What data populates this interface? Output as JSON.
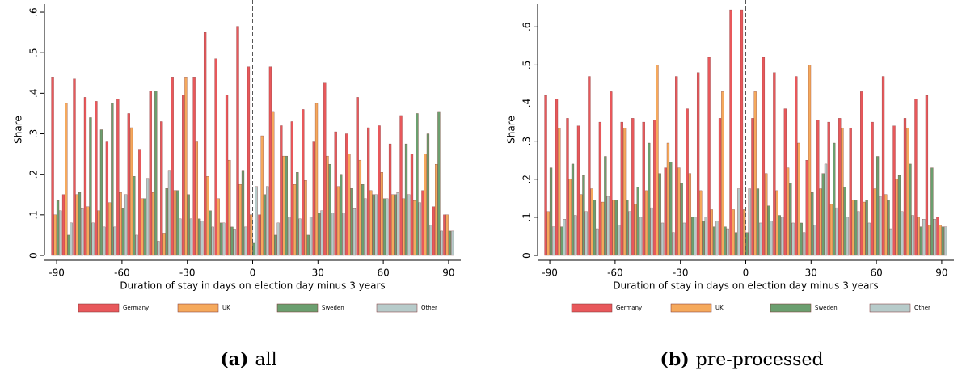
{
  "chart_data": [
    {
      "type": "bar",
      "caption_label": "(a)",
      "caption": "all",
      "xlabel": "Duration of stay in days on election day minus 3 years",
      "ylabel": "Share",
      "x": [
        -90,
        -85,
        -80,
        -75,
        -70,
        -65,
        -60,
        -55,
        -50,
        -45,
        -40,
        -35,
        -30,
        -25,
        -20,
        -15,
        -10,
        -5,
        0,
        5,
        10,
        15,
        20,
        25,
        30,
        35,
        40,
        45,
        50,
        55,
        60,
        65,
        70,
        75,
        80,
        85,
        90
      ],
      "series": [
        {
          "name": "Germany",
          "color": "#e8585b",
          "values": [
            0.44,
            0.15,
            0.435,
            0.39,
            0.38,
            0.28,
            0.385,
            0.35,
            0.26,
            0.405,
            0.33,
            0.44,
            0.395,
            0.44,
            0.55,
            0.485,
            0.395,
            0.565,
            0.465,
            0.1,
            0.465,
            0.32,
            0.33,
            0.36,
            0.28,
            0.425,
            0.305,
            0.3,
            0.39,
            0.315,
            0.32,
            0.275,
            0.345,
            0.25,
            0.16,
            0.12,
            0.1
          ]
        },
        {
          "name": "UK",
          "color": "#f5a95c",
          "values": [
            0.1,
            0.375,
            0.15,
            0.12,
            0.11,
            0.13,
            0.155,
            0.315,
            0.14,
            0.155,
            0.055,
            0.16,
            0.44,
            0.28,
            0.195,
            0.14,
            0.235,
            0.175,
            0.1,
            0.295,
            0.355,
            0.245,
            0.175,
            0.185,
            0.375,
            0.245,
            0.17,
            0.25,
            0.235,
            0.16,
            0.205,
            0.15,
            0.14,
            0.135,
            0.25,
            0.225,
            0.1
          ]
        },
        {
          "name": "Sweden",
          "color": "#6b9f6f",
          "values": [
            0.135,
            0.05,
            0.155,
            0.34,
            0.31,
            0.375,
            0.115,
            0.195,
            0.14,
            0.405,
            0.165,
            0.16,
            0.15,
            0.09,
            0.11,
            0.08,
            0.07,
            0.21,
            0.03,
            0.15,
            0.05,
            0.245,
            0.205,
            0.05,
            0.105,
            0.225,
            0.2,
            0.165,
            0.175,
            0.15,
            0.14,
            0.15,
            0.275,
            0.35,
            0.3,
            0.355,
            0.06
          ]
        },
        {
          "name": "Other",
          "color": "#b7cbca",
          "values": [
            0.11,
            0.08,
            0.115,
            0.08,
            0.07,
            0.07,
            0.15,
            0.05,
            0.19,
            0.035,
            0.21,
            0.09,
            0.09,
            0.085,
            0.07,
            0.08,
            0.065,
            0.07,
            0.17,
            0.17,
            0.08,
            0.095,
            0.09,
            0.095,
            0.11,
            0.105,
            0.105,
            0.115,
            0.14,
            0.15,
            0.14,
            0.155,
            0.15,
            0.13,
            0.075,
            0.06,
            0.06
          ]
        }
      ],
      "xlim": [
        -93,
        93
      ],
      "xticks": [
        -90,
        -60,
        -30,
        0,
        30,
        60,
        90
      ],
      "ylim": [
        0,
        0.62
      ],
      "yticks": [
        0,
        {
          "value": 0.1,
          "label": ".1"
        },
        {
          "value": 0.2,
          "label": ".2"
        },
        {
          "value": 0.3,
          "label": ".3"
        },
        {
          "value": 0.4,
          "label": ".4"
        },
        {
          "value": 0.5,
          "label": ".5"
        },
        {
          "value": 0.6,
          "label": ".6"
        }
      ],
      "reference_line_x": 0,
      "legend": "bottom",
      "grid": false
    },
    {
      "type": "bar",
      "caption_label": "(b)",
      "caption": "pre-processed",
      "xlabel": "Duration of stay in days on election day minus 3 years",
      "ylabel": "Share",
      "x": [
        -90,
        -85,
        -80,
        -75,
        -70,
        -65,
        -60,
        -55,
        -50,
        -45,
        -40,
        -35,
        -30,
        -25,
        -20,
        -15,
        -10,
        -5,
        0,
        5,
        10,
        15,
        20,
        25,
        30,
        35,
        40,
        45,
        50,
        55,
        60,
        65,
        70,
        75,
        80,
        85,
        90
      ],
      "series": [
        {
          "name": "Germany",
          "color": "#e8585b",
          "values": [
            0.42,
            0.41,
            0.36,
            0.34,
            0.47,
            0.35,
            0.43,
            0.35,
            0.36,
            0.35,
            0.355,
            0.23,
            0.47,
            0.385,
            0.48,
            0.52,
            0.36,
            0.645,
            0.645,
            0.36,
            0.52,
            0.48,
            0.385,
            0.47,
            0.25,
            0.355,
            0.35,
            0.36,
            0.335,
            0.43,
            0.35,
            0.47,
            0.34,
            0.36,
            0.41,
            0.42,
            0.1
          ]
        },
        {
          "name": "UK",
          "color": "#f5a95c",
          "values": [
            0.115,
            0.335,
            0.2,
            0.16,
            0.175,
            0.14,
            0.145,
            0.335,
            0.135,
            0.17,
            0.5,
            0.295,
            0.23,
            0.215,
            0.17,
            0.12,
            0.43,
            0.12,
            0.12,
            0.43,
            0.215,
            0.17,
            0.23,
            0.295,
            0.5,
            0.175,
            0.135,
            0.335,
            0.145,
            0.14,
            0.175,
            0.16,
            0.2,
            0.335,
            0.1,
            0.08,
            0.08
          ]
        },
        {
          "name": "Sweden",
          "color": "#6b9f6f",
          "values": [
            0.23,
            0.075,
            0.24,
            0.21,
            0.145,
            0.26,
            0.145,
            0.145,
            0.18,
            0.295,
            0.215,
            0.245,
            0.19,
            0.1,
            0.09,
            0.075,
            0.075,
            0.06,
            0.06,
            0.175,
            0.13,
            0.105,
            0.19,
            0.085,
            0.165,
            0.215,
            0.295,
            0.18,
            0.145,
            0.145,
            0.26,
            0.145,
            0.21,
            0.24,
            0.075,
            0.23,
            0.075
          ]
        },
        {
          "name": "Other",
          "color": "#b7cbca",
          "values": [
            0.075,
            0.095,
            0.105,
            0.115,
            0.07,
            0.155,
            0.08,
            0.115,
            0.1,
            0.125,
            0.085,
            0.06,
            0.085,
            0.1,
            0.1,
            0.09,
            0.07,
            0.175,
            0.175,
            0.085,
            0.09,
            0.1,
            0.085,
            0.06,
            0.08,
            0.24,
            0.125,
            0.1,
            0.115,
            0.085,
            0.155,
            0.07,
            0.115,
            0.105,
            0.095,
            0.095,
            0.075
          ]
        }
      ],
      "xlim": [
        -93,
        93
      ],
      "xticks": [
        -90,
        -60,
        -30,
        0,
        30,
        60,
        90
      ],
      "ylim": [
        0,
        0.66
      ],
      "yticks": [
        0,
        {
          "value": 0.1,
          "label": ".1"
        },
        {
          "value": 0.2,
          "label": ".2"
        },
        {
          "value": 0.3,
          "label": ".3"
        },
        {
          "value": 0.4,
          "label": ".4"
        },
        {
          "value": 0.5,
          "label": ".5"
        },
        {
          "value": 0.6,
          "label": ".6"
        }
      ],
      "reference_line_x": 0,
      "legend": "bottom",
      "grid": false
    }
  ]
}
